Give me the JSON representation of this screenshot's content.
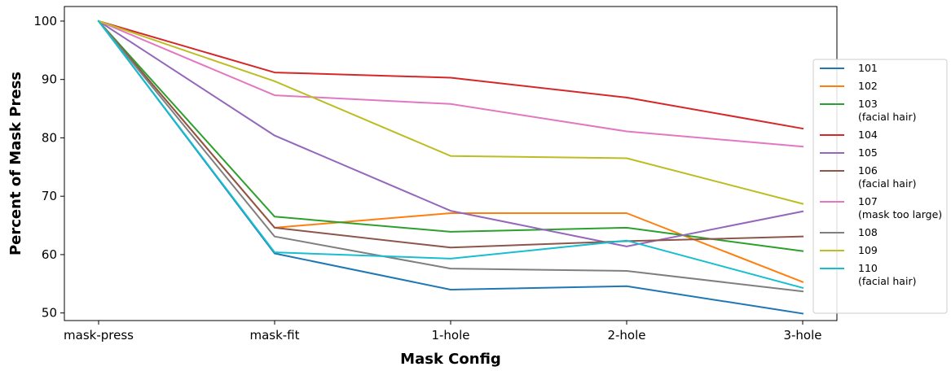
{
  "chart_data": {
    "type": "line",
    "xlabel": "Mask Config",
    "ylabel": "Percent of Mask Press",
    "categories": [
      "mask-press",
      "mask-fit",
      "1-hole",
      "2-hole",
      "3-hole"
    ],
    "yticks": [
      50,
      60,
      70,
      80,
      90,
      100
    ],
    "ylim": [
      48.7,
      102.5
    ],
    "grid": false,
    "legend_position": "right",
    "series": [
      {
        "name": "101",
        "label_lines": [
          "101"
        ],
        "color": "#1f77b4",
        "values": [
          100,
          60.2,
          54.0,
          54.6,
          49.9
        ]
      },
      {
        "name": "102",
        "label_lines": [
          "102"
        ],
        "color": "#ff7f0e",
        "values": [
          100,
          64.6,
          67.1,
          67.1,
          55.3
        ]
      },
      {
        "name": "103 (facial hair)",
        "label_lines": [
          "103",
          "(facial hair)"
        ],
        "color": "#2ca02c",
        "values": [
          100,
          66.5,
          63.9,
          64.6,
          60.6
        ]
      },
      {
        "name": "104",
        "label_lines": [
          "104"
        ],
        "color": "#d62728",
        "values": [
          100,
          91.2,
          90.3,
          86.9,
          81.6
        ]
      },
      {
        "name": "105",
        "label_lines": [
          "105"
        ],
        "color": "#9467bd",
        "values": [
          100,
          80.4,
          67.5,
          61.4,
          67.4
        ]
      },
      {
        "name": "106 (facial hair)",
        "label_lines": [
          "106",
          "(facial hair)"
        ],
        "color": "#8c564b",
        "values": [
          100,
          64.6,
          61.2,
          62.3,
          63.1
        ]
      },
      {
        "name": "107 (mask too large)",
        "label_lines": [
          "107",
          "(mask too large)"
        ],
        "color": "#e377c2",
        "values": [
          100,
          87.3,
          85.8,
          81.1,
          78.5
        ]
      },
      {
        "name": "108",
        "label_lines": [
          "108"
        ],
        "color": "#7f7f7f",
        "values": [
          100,
          63.1,
          57.6,
          57.2,
          53.7
        ]
      },
      {
        "name": "109",
        "label_lines": [
          "109"
        ],
        "color": "#bcbd22",
        "values": [
          100,
          89.7,
          76.9,
          76.5,
          68.7
        ]
      },
      {
        "name": "110 (facial hair)",
        "label_lines": [
          "110",
          "(facial hair)"
        ],
        "color": "#17becf",
        "values": [
          100,
          60.4,
          59.3,
          62.4,
          54.3
        ]
      }
    ]
  }
}
